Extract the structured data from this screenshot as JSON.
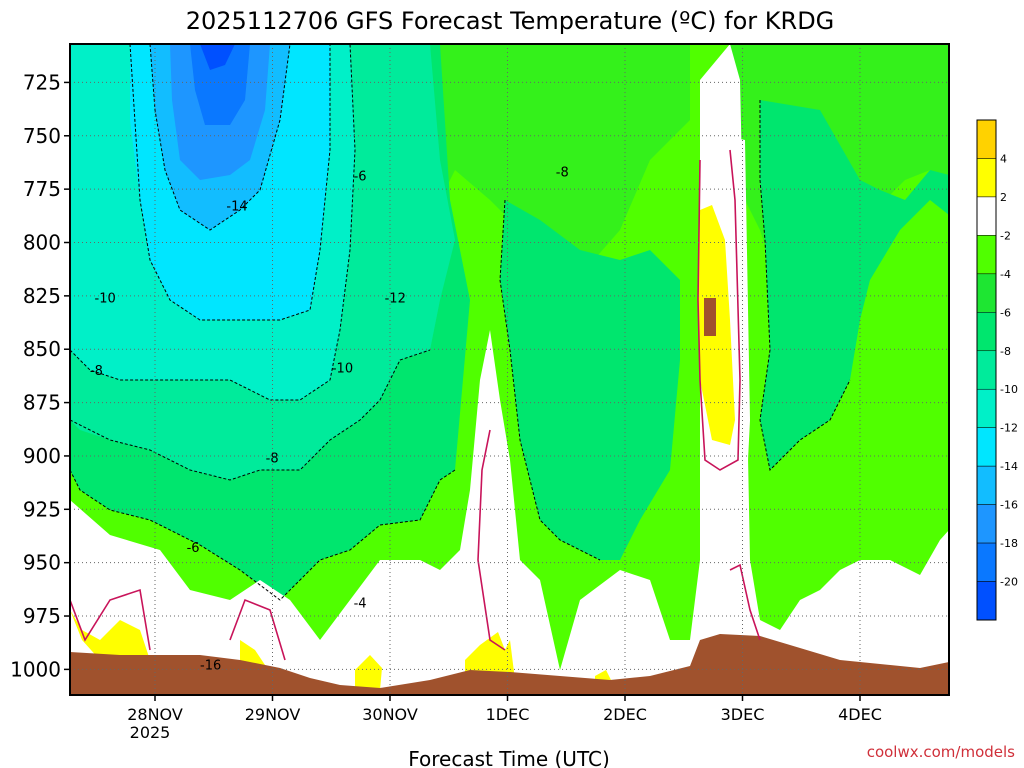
{
  "chart_data": {
    "type": "heatmap",
    "title": "2025112706 GFS Forecast Temperature (ºC) for KRDG",
    "xlabel": "Forecast Time (UTC)",
    "ylabel": "",
    "y_axis": {
      "scale": "pressure (decreasing upward)",
      "ticks": [
        725,
        750,
        775,
        800,
        825,
        850,
        875,
        900,
        925,
        950,
        975,
        1000
      ],
      "ylim": [
        1012,
        707
      ]
    },
    "x_axis": {
      "ticks": [
        "28NOV",
        "29NOV",
        "30NOV",
        "1DEC",
        "2DEC",
        "3DEC",
        "4DEC"
      ],
      "year_label": "2025"
    },
    "colorbar": {
      "levels": [
        -20,
        -18,
        -16,
        -14,
        -12,
        -10,
        -8,
        -6,
        -4,
        -2,
        2,
        4
      ],
      "colors": [
        "#0050ff",
        "#0a78ff",
        "#1e96ff",
        "#12bdff",
        "#00e6ff",
        "#00f0c8",
        "#00eb9b",
        "#00e66e",
        "#1ee632",
        "#50ff00",
        "#ffffff",
        "#ffff00",
        "#ffd200"
      ]
    },
    "contour_labels": [
      {
        "x": 0.16,
        "p": 1000,
        "v": "-16"
      },
      {
        "x": 0.19,
        "p": 785,
        "v": "-14"
      },
      {
        "x": 0.37,
        "p": 828,
        "v": "-12"
      },
      {
        "x": 0.04,
        "p": 828,
        "v": "-10"
      },
      {
        "x": 0.31,
        "p": 861,
        "v": "-10"
      },
      {
        "x": 0.03,
        "p": 862,
        "v": "-8"
      },
      {
        "x": 0.23,
        "p": 903,
        "v": "-8"
      },
      {
        "x": 0.14,
        "p": 945,
        "v": "-6"
      },
      {
        "x": 0.33,
        "p": 771,
        "v": "-6"
      },
      {
        "x": 0.56,
        "p": 769,
        "v": "-8"
      },
      {
        "x": 0.33,
        "p": 971,
        "v": "-4"
      }
    ],
    "grid": true,
    "watermark": "coolwx.com/models"
  }
}
